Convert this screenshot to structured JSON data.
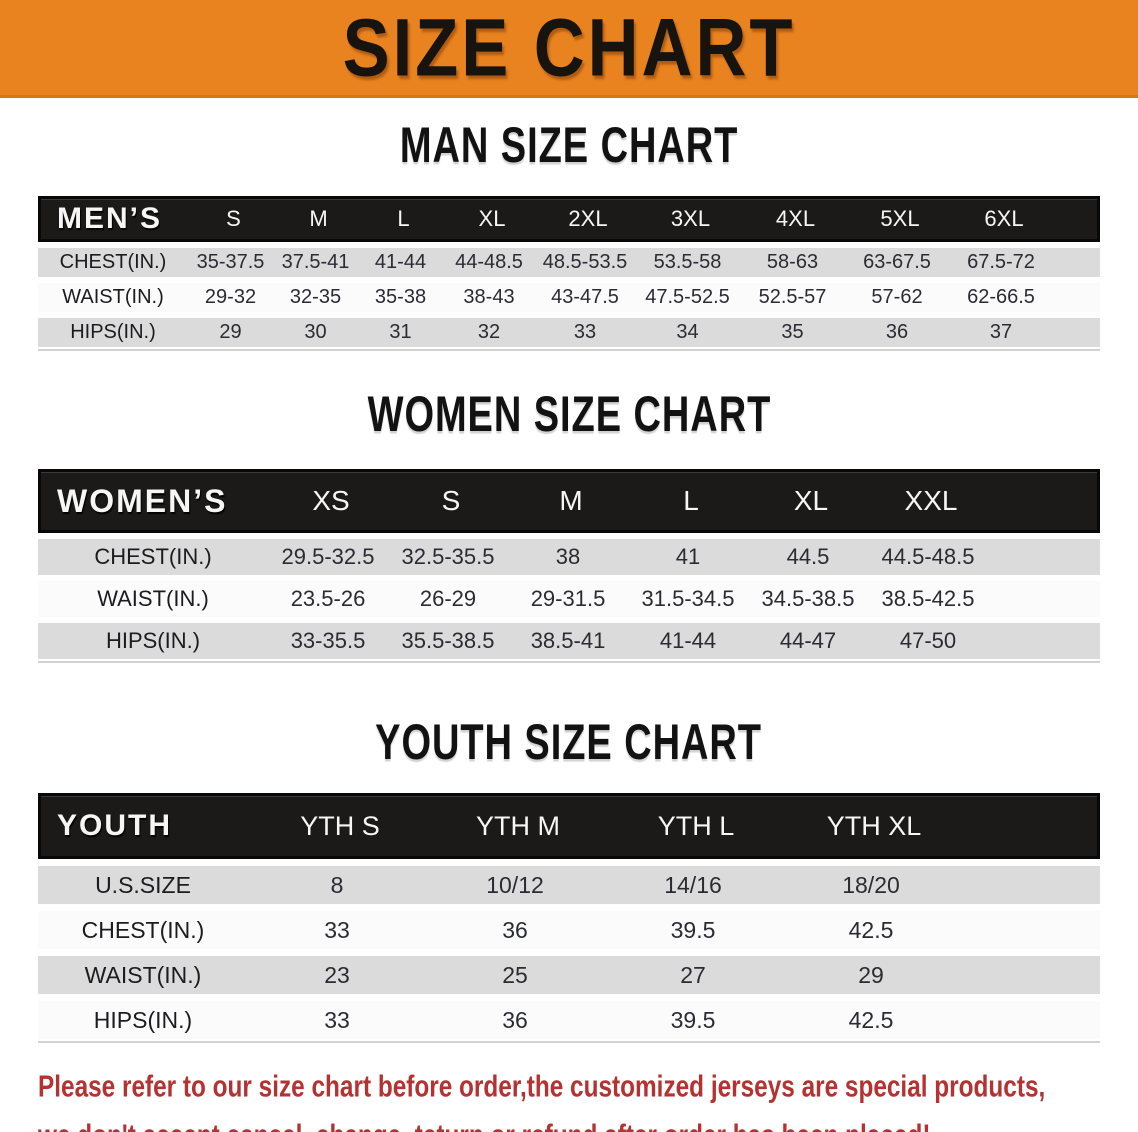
{
  "banner": {
    "title": "SIZE CHART",
    "bg_color": "#E8831F",
    "text_color": "#17130E"
  },
  "sections": [
    {
      "title": "MAN SIZE CHART",
      "table": {
        "header_label": "MEN’S",
        "columns": [
          "S",
          "M",
          "L",
          "XL",
          "2XL",
          "3XL",
          "4XL",
          "5XL",
          "6XL"
        ],
        "rows": [
          {
            "label": "CHEST(IN.)",
            "values": [
              "35-37.5",
              "37.5-41",
              "41-44",
              "44-48.5",
              "48.5-53.5",
              "53.5-58",
              "58-63",
              "63-67.5",
              "67.5-72"
            ]
          },
          {
            "label": "WAIST(IN.)",
            "values": [
              "29-32",
              "32-35",
              "35-38",
              "38-43",
              "43-47.5",
              "47.5-52.5",
              "52.5-57",
              "57-62",
              "62-66.5"
            ]
          },
          {
            "label": "HIPS(IN.)",
            "values": [
              "29",
              "30",
              "31",
              "32",
              "33",
              "34",
              "35",
              "36",
              "37"
            ]
          }
        ]
      }
    },
    {
      "title": "WOMEN SIZE CHART",
      "table": {
        "header_label": "WOMEN’S",
        "columns": [
          "XS",
          "S",
          "M",
          "L",
          "XL",
          "XXL"
        ],
        "rows": [
          {
            "label": "CHEST(IN.)",
            "values": [
              "29.5-32.5",
              "32.5-35.5",
              "38",
              "41",
              "44.5",
              "44.5-48.5"
            ]
          },
          {
            "label": "WAIST(IN.)",
            "values": [
              "23.5-26",
              "26-29",
              "29-31.5",
              "31.5-34.5",
              "34.5-38.5",
              "38.5-42.5"
            ]
          },
          {
            "label": "HIPS(IN.)",
            "values": [
              "33-35.5",
              "35.5-38.5",
              "38.5-41",
              "41-44",
              "44-47",
              "47-50"
            ]
          }
        ]
      }
    },
    {
      "title": "YOUTH SIZE CHART",
      "table": {
        "header_label": "YOUTH",
        "columns": [
          "YTH S",
          "YTH M",
          "YTH L",
          "YTH XL"
        ],
        "rows": [
          {
            "label": "U.S.SIZE",
            "values": [
              "8",
              "10/12",
              "14/16",
              "18/20"
            ]
          },
          {
            "label": "CHEST(IN.)",
            "values": [
              "33",
              "36",
              "39.5",
              "42.5"
            ]
          },
          {
            "label": "WAIST(IN.)",
            "values": [
              "23",
              "25",
              "27",
              "29"
            ]
          },
          {
            "label": "HIPS(IN.)",
            "values": [
              "33",
              "36",
              "39.5",
              "42.5"
            ]
          }
        ]
      }
    }
  ],
  "footer": {
    "line1": "Please refer to our size chart before order,the customized jerseys are special products,",
    "line2": "we don't accept cancel, change, teturn or refund after order has been placed!",
    "text_color": "#B43231"
  },
  "colors": {
    "header_row_bg": "#1B1A19",
    "row_gray": "#DBDBDC",
    "row_white": "#FBFBFC",
    "value_text": "#2B2B33"
  }
}
